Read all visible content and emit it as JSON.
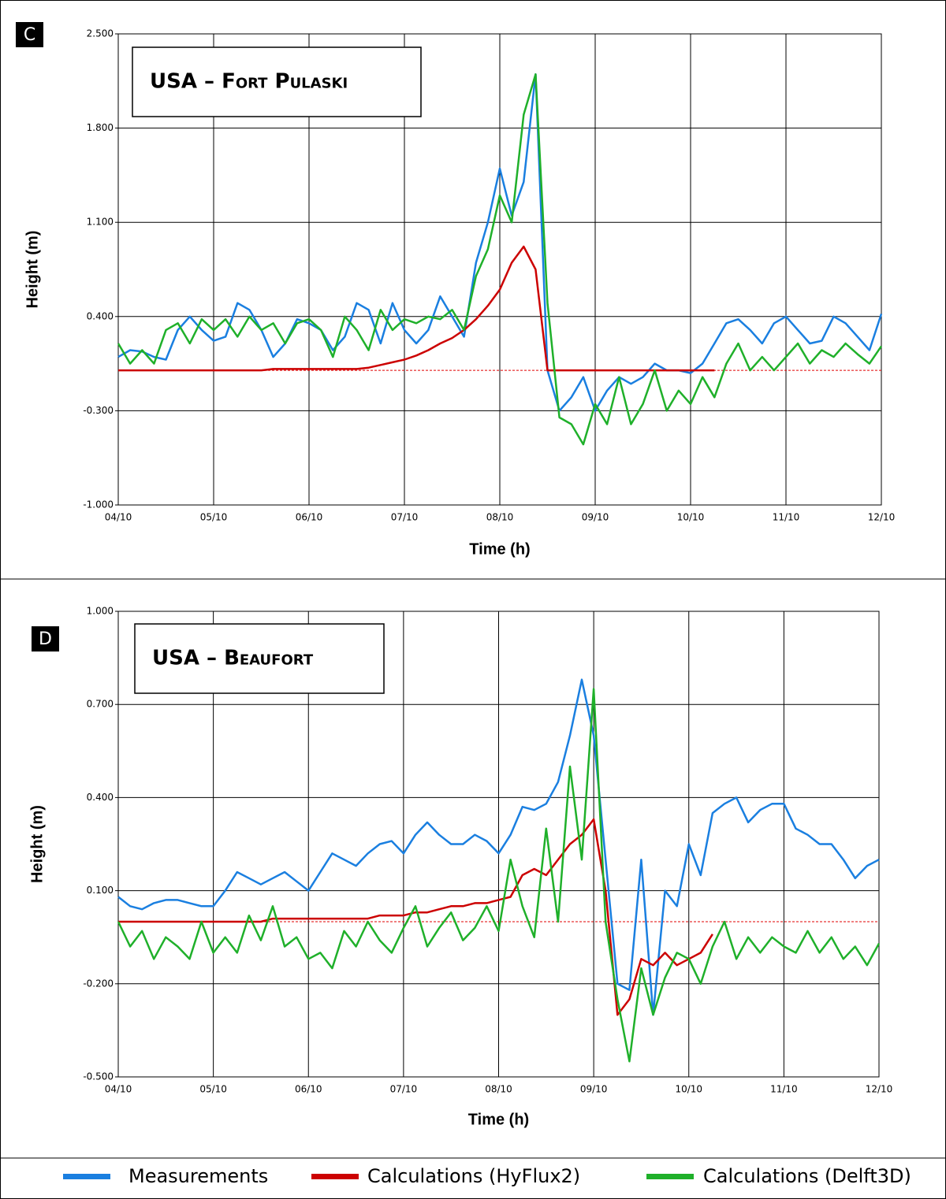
{
  "chart_data": [
    {
      "type": "line",
      "panel": "C",
      "title": "USA – Fort Pulaski",
      "x_label": "Time (h)",
      "y_label": "Height (m)",
      "xlim": [
        0,
        8
      ],
      "ylim": [
        -1,
        2.5
      ],
      "grid": true,
      "hline": 0,
      "xticks": [
        {
          "value": 0,
          "label": "04/10"
        },
        {
          "value": 1,
          "label": "05/10"
        },
        {
          "value": 2,
          "label": "06/10"
        },
        {
          "value": 3,
          "label": "07/10"
        },
        {
          "value": 4,
          "label": "08/10"
        },
        {
          "value": 5,
          "label": "09/10"
        },
        {
          "value": 6,
          "label": "10/10"
        },
        {
          "value": 7,
          "label": "11/10"
        },
        {
          "value": 8,
          "label": "12/10"
        }
      ],
      "yticks": [
        {
          "value": -1,
          "label": "-1.000"
        },
        {
          "value": -0.3,
          "label": "-0.300"
        },
        {
          "value": 0.4,
          "label": "0.400"
        },
        {
          "value": 1.1,
          "label": "1.100"
        },
        {
          "value": 1.8,
          "label": "1.800"
        },
        {
          "value": 2.5,
          "label": "2.500"
        }
      ],
      "x": [
        0,
        0.125,
        0.25,
        0.375,
        0.5,
        0.625,
        0.75,
        0.875,
        1,
        1.125,
        1.25,
        1.375,
        1.5,
        1.625,
        1.75,
        1.875,
        2,
        2.125,
        2.25,
        2.375,
        2.5,
        2.625,
        2.75,
        2.875,
        3,
        3.125,
        3.25,
        3.375,
        3.5,
        3.625,
        3.75,
        3.875,
        4,
        4.125,
        4.25,
        4.375,
        4.5,
        4.625,
        4.75,
        4.875,
        5,
        5.125,
        5.25,
        5.375,
        5.5,
        5.625,
        5.75,
        5.875,
        6,
        6.125,
        6.25,
        6.375,
        6.5,
        6.625,
        6.75,
        6.875,
        7,
        7.125,
        7.25,
        7.375,
        7.5,
        7.625,
        7.75,
        7.875,
        8
      ],
      "series": [
        {
          "name": "Measurements",
          "color": "#1a7fe0",
          "values": [
            0.1,
            0.15,
            0.14,
            0.1,
            0.08,
            0.3,
            0.4,
            0.3,
            0.22,
            0.25,
            0.5,
            0.45,
            0.3,
            0.1,
            0.2,
            0.38,
            0.35,
            0.3,
            0.15,
            0.25,
            0.5,
            0.45,
            0.2,
            0.5,
            0.3,
            0.2,
            0.3,
            0.55,
            0.4,
            0.25,
            0.8,
            1.1,
            1.5,
            1.15,
            1.4,
            2.2,
            0.0,
            -0.3,
            -0.2,
            -0.05,
            -0.3,
            -0.15,
            -0.05,
            -0.1,
            -0.05,
            0.05,
            0.0,
            0.0,
            -0.02,
            0.05,
            0.2,
            0.35,
            0.38,
            0.3,
            0.2,
            0.35,
            0.4,
            0.3,
            0.2,
            0.22,
            0.4,
            0.35,
            0.25,
            0.15,
            0.42
          ]
        },
        {
          "name": "Calculations (HyFlux2)",
          "color": "#cc0000",
          "values": [
            0,
            0,
            0,
            0,
            0,
            0,
            0,
            0,
            0,
            0,
            0,
            0,
            0,
            0.01,
            0.01,
            0.01,
            0.01,
            0.01,
            0.01,
            0.01,
            0.01,
            0.02,
            0.04,
            0.06,
            0.08,
            0.11,
            0.15,
            0.2,
            0.24,
            0.3,
            0.38,
            0.48,
            0.6,
            0.8,
            0.92,
            0.75,
            0.0,
            0,
            0,
            0,
            0,
            0,
            0,
            0,
            0,
            0,
            0,
            0,
            0,
            0,
            0,
            null,
            null,
            null,
            null,
            null,
            null,
            null,
            null,
            null,
            null,
            null,
            null,
            null,
            null
          ]
        },
        {
          "name": "Calculations (Delft3D)",
          "color": "#1fb02a",
          "values": [
            0.2,
            0.05,
            0.15,
            0.05,
            0.3,
            0.35,
            0.2,
            0.38,
            0.3,
            0.38,
            0.25,
            0.4,
            0.3,
            0.35,
            0.2,
            0.35,
            0.38,
            0.3,
            0.1,
            0.4,
            0.3,
            0.15,
            0.45,
            0.3,
            0.38,
            0.35,
            0.4,
            0.38,
            0.45,
            0.3,
            0.7,
            0.9,
            1.3,
            1.1,
            1.9,
            2.2,
            0.5,
            -0.35,
            -0.4,
            -0.55,
            -0.25,
            -0.4,
            -0.05,
            -0.4,
            -0.25,
            0.0,
            -0.3,
            -0.15,
            -0.25,
            -0.05,
            -0.2,
            0.05,
            0.2,
            0.0,
            0.1,
            0.0,
            0.1,
            0.2,
            0.05,
            0.15,
            0.1,
            0.2,
            0.12,
            0.05,
            0.18
          ]
        }
      ]
    },
    {
      "type": "line",
      "panel": "D",
      "title": "USA – Beaufort",
      "x_label": "Time (h)",
      "y_label": "Height (m)",
      "xlim": [
        0,
        8
      ],
      "ylim": [
        -0.5,
        1
      ],
      "grid": true,
      "hline": 0,
      "xticks": [
        {
          "value": 0,
          "label": "04/10"
        },
        {
          "value": 1,
          "label": "05/10"
        },
        {
          "value": 2,
          "label": "06/10"
        },
        {
          "value": 3,
          "label": "07/10"
        },
        {
          "value": 4,
          "label": "08/10"
        },
        {
          "value": 5,
          "label": "09/10"
        },
        {
          "value": 6,
          "label": "10/10"
        },
        {
          "value": 7,
          "label": "11/10"
        },
        {
          "value": 8,
          "label": "12/10"
        }
      ],
      "yticks": [
        {
          "value": -0.5,
          "label": "-0.500"
        },
        {
          "value": -0.2,
          "label": "-0.200"
        },
        {
          "value": 0.1,
          "label": "0.100"
        },
        {
          "value": 0.4,
          "label": "0.400"
        },
        {
          "value": 0.7,
          "label": "0.700"
        },
        {
          "value": 1,
          "label": "1.000"
        }
      ],
      "x": [
        0,
        0.125,
        0.25,
        0.375,
        0.5,
        0.625,
        0.75,
        0.875,
        1,
        1.125,
        1.25,
        1.375,
        1.5,
        1.625,
        1.75,
        1.875,
        2,
        2.125,
        2.25,
        2.375,
        2.5,
        2.625,
        2.75,
        2.875,
        3,
        3.125,
        3.25,
        3.375,
        3.5,
        3.625,
        3.75,
        3.875,
        4,
        4.125,
        4.25,
        4.375,
        4.5,
        4.625,
        4.75,
        4.875,
        5,
        5.125,
        5.25,
        5.375,
        5.5,
        5.625,
        5.75,
        5.875,
        6,
        6.125,
        6.25,
        6.375,
        6.5,
        6.625,
        6.75,
        6.875,
        7,
        7.125,
        7.25,
        7.375,
        7.5,
        7.625,
        7.75,
        7.875,
        8
      ],
      "series": [
        {
          "color": "#1a7fe0",
          "values": [
            0.08,
            0.05,
            0.04,
            0.06,
            0.07,
            0.07,
            0.06,
            0.05,
            0.05,
            0.1,
            0.16,
            0.14,
            0.12,
            0.14,
            0.16,
            0.13,
            0.1,
            0.16,
            0.22,
            0.2,
            0.18,
            0.22,
            0.25,
            0.26,
            0.22,
            0.28,
            0.32,
            0.28,
            0.25,
            0.25,
            0.28,
            0.26,
            0.22,
            0.28,
            0.37,
            0.36,
            0.38,
            0.45,
            0.6,
            0.78,
            0.6,
            0.2,
            -0.2,
            -0.22,
            0.2,
            -0.3,
            0.1,
            0.05,
            0.25,
            0.15,
            0.35,
            0.38,
            0.4,
            0.32,
            0.36,
            0.38,
            0.38,
            0.3,
            0.28,
            0.25,
            0.25,
            0.2,
            0.14,
            0.18,
            0.2
          ]
        },
        {
          "color": "#cc0000",
          "values": [
            0,
            0,
            0,
            0,
            0,
            0,
            0,
            0,
            0,
            0,
            0,
            0,
            0,
            0.01,
            0.01,
            0.01,
            0.01,
            0.01,
            0.01,
            0.01,
            0.01,
            0.01,
            0.02,
            0.02,
            0.02,
            0.03,
            0.03,
            0.04,
            0.05,
            0.05,
            0.06,
            0.06,
            0.07,
            0.08,
            0.15,
            0.17,
            0.15,
            0.2,
            0.25,
            0.28,
            0.33,
            0.1,
            -0.3,
            -0.25,
            -0.12,
            -0.14,
            -0.1,
            -0.14,
            -0.12,
            -0.1,
            -0.04,
            null,
            null,
            null,
            null,
            null,
            null,
            null,
            null,
            null,
            null,
            null,
            null,
            null,
            null
          ]
        },
        {
          "color": "#1fb02a",
          "values": [
            0.0,
            -0.08,
            -0.03,
            -0.12,
            -0.05,
            -0.08,
            -0.12,
            0.0,
            -0.1,
            -0.05,
            -0.1,
            0.02,
            -0.06,
            0.05,
            -0.08,
            -0.05,
            -0.12,
            -0.1,
            -0.15,
            -0.03,
            -0.08,
            0.0,
            -0.06,
            -0.1,
            -0.02,
            0.05,
            -0.08,
            -0.02,
            0.03,
            -0.06,
            -0.02,
            0.05,
            -0.03,
            0.2,
            0.05,
            -0.05,
            0.3,
            0.0,
            0.5,
            0.2,
            0.75,
            0.0,
            -0.25,
            -0.45,
            -0.15,
            -0.3,
            -0.18,
            -0.1,
            -0.12,
            -0.2,
            -0.08,
            0.0,
            -0.12,
            -0.05,
            -0.1,
            -0.05,
            -0.08,
            -0.1,
            -0.03,
            -0.1,
            -0.05,
            -0.12,
            -0.08,
            -0.14,
            -0.07
          ]
        }
      ]
    }
  ]
}
